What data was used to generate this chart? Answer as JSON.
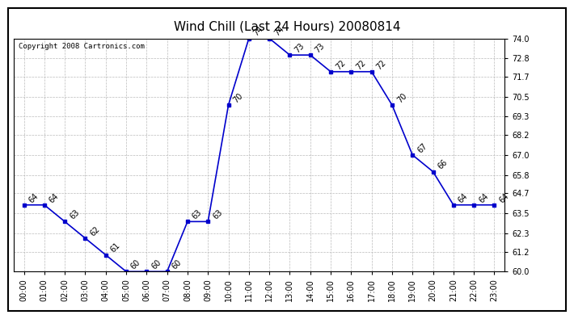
{
  "title": "Wind Chill (Last 24 Hours) 20080814",
  "copyright": "Copyright 2008 Cartronics.com",
  "hours": [
    "00:00",
    "01:00",
    "02:00",
    "03:00",
    "04:00",
    "05:00",
    "06:00",
    "07:00",
    "08:00",
    "09:00",
    "10:00",
    "11:00",
    "12:00",
    "13:00",
    "14:00",
    "15:00",
    "16:00",
    "17:00",
    "18:00",
    "19:00",
    "20:00",
    "21:00",
    "22:00",
    "23:00"
  ],
  "values": [
    64,
    64,
    63,
    62,
    61,
    60,
    60,
    60,
    63,
    63,
    70,
    74,
    74,
    73,
    73,
    72,
    72,
    72,
    70,
    67,
    66,
    64,
    64,
    64
  ],
  "ylim_min": 60.0,
  "ylim_max": 74.0,
  "yticks": [
    60.0,
    61.2,
    62.3,
    63.5,
    64.7,
    65.8,
    67.0,
    68.2,
    69.3,
    70.5,
    71.7,
    72.8,
    74.0
  ],
  "line_color": "#0000cc",
  "marker": "s",
  "marker_size": 3,
  "bg_color": "#ffffff",
  "plot_bg_color": "#ffffff",
  "grid_color": "#bbbbbb",
  "title_fontsize": 11,
  "label_fontsize": 7,
  "annotation_fontsize": 7,
  "copyright_fontsize": 6.5
}
